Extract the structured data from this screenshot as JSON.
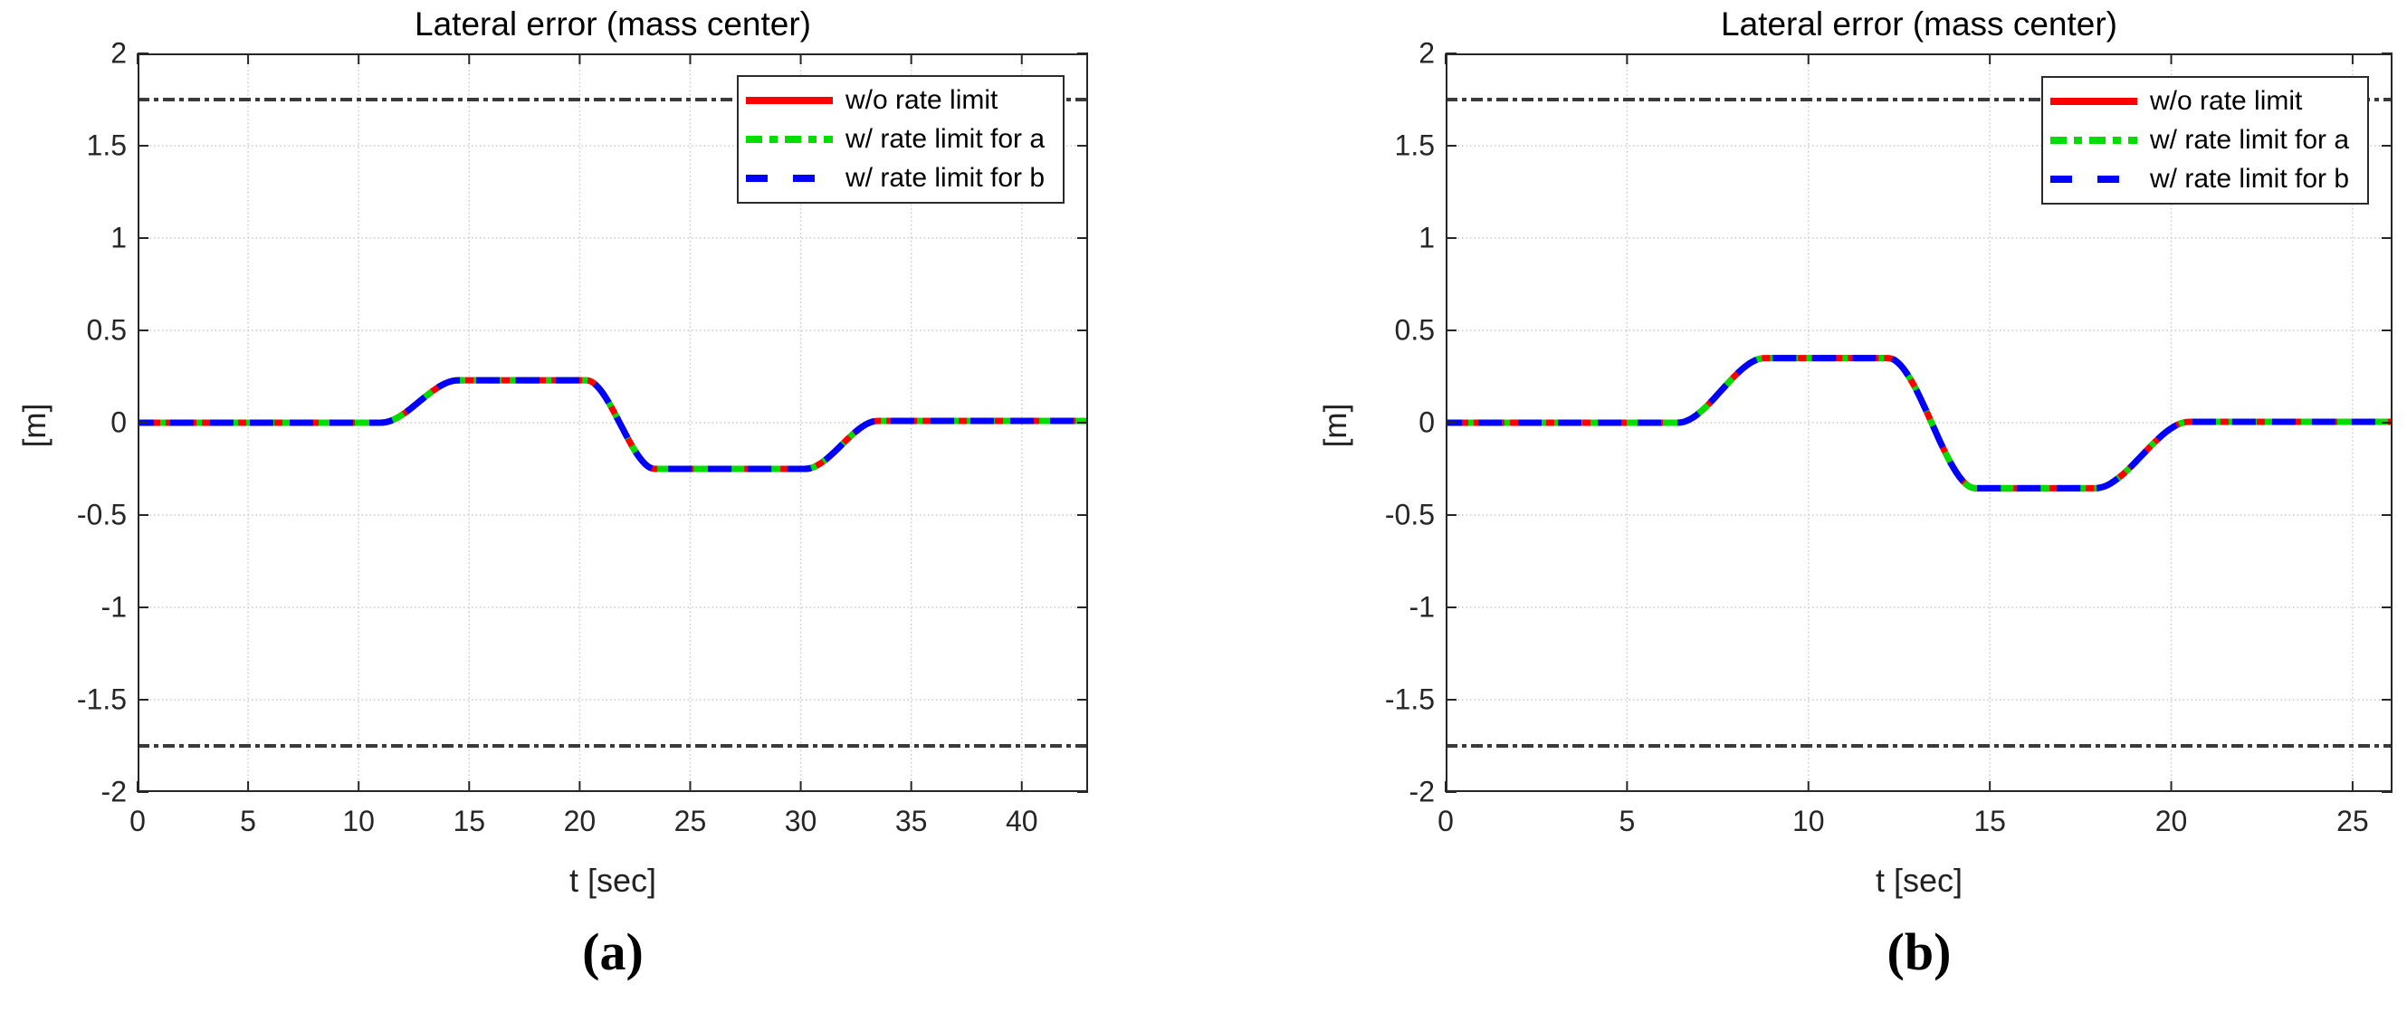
{
  "figure": {
    "background": "#ffffff",
    "axis_color": "#262626",
    "grid_color": "#c9c9c9",
    "bound_line_color": "#3a3a3a"
  },
  "legend": {
    "items": [
      {
        "label": "w/o rate limit",
        "color": "#ff0000",
        "dash": "",
        "icon": "solid-red-line"
      },
      {
        "label": "w/ rate limit for a",
        "color": "#00dd00",
        "dash": "18 8 9 8",
        "icon": "dashdot-green-line"
      },
      {
        "label": "w/ rate limit for b",
        "color": "#0000ff",
        "dash": "24 28",
        "icon": "dashed-blue-line"
      }
    ]
  },
  "chart_data": {
    "type": "line",
    "plots": [
      {
        "caption": "(a)",
        "title": "Lateral error (mass center)",
        "xlabel": "t [sec]",
        "ylabel": "[m]",
        "xlim": [
          0,
          43
        ],
        "ylim": [
          -2,
          2
        ],
        "xticks": [
          {
            "v": 0,
            "label": "0"
          },
          {
            "v": 5,
            "label": "5"
          },
          {
            "v": 10,
            "label": "10"
          },
          {
            "v": 15,
            "label": "15"
          },
          {
            "v": 20,
            "label": "20"
          },
          {
            "v": 25,
            "label": "25"
          },
          {
            "v": 30,
            "label": "30"
          },
          {
            "v": 35,
            "label": "35"
          },
          {
            "v": 40,
            "label": "40"
          }
        ],
        "yticks": [
          {
            "v": -2,
            "label": "-2"
          },
          {
            "v": -1.5,
            "label": "-1.5"
          },
          {
            "v": -1,
            "label": "-1"
          },
          {
            "v": -0.5,
            "label": "-0.5"
          },
          {
            "v": 0,
            "label": "0"
          },
          {
            "v": 0.5,
            "label": "0.5"
          },
          {
            "v": 1,
            "label": "1"
          },
          {
            "v": 1.5,
            "label": "1.5"
          },
          {
            "v": 2,
            "label": "2"
          }
        ],
        "bounds": [
          1.75,
          -1.75
        ],
        "grid": true,
        "legend_position": "top-right",
        "series_note": "three coincident curves: w/o rate limit, w/ rate limit for a, w/ rate limit for b",
        "curve_keypoints": [
          [
            0,
            0
          ],
          [
            11.0,
            0
          ],
          [
            14.5,
            0.23
          ],
          [
            20.3,
            0.23
          ],
          [
            23.4,
            -0.25
          ],
          [
            30.2,
            -0.25
          ],
          [
            33.5,
            0.01
          ],
          [
            43,
            0.01
          ]
        ]
      },
      {
        "caption": "(b)",
        "title": "Lateral error (mass center)",
        "xlabel": "t [sec]",
        "ylabel": "[m]",
        "xlim": [
          0,
          26.1
        ],
        "ylim": [
          -2,
          2
        ],
        "xticks": [
          {
            "v": 0,
            "label": "0"
          },
          {
            "v": 5,
            "label": "5"
          },
          {
            "v": 10,
            "label": "10"
          },
          {
            "v": 15,
            "label": "15"
          },
          {
            "v": 20,
            "label": "20"
          },
          {
            "v": 25,
            "label": "25"
          }
        ],
        "yticks": [
          {
            "v": -2,
            "label": "-2"
          },
          {
            "v": -1.5,
            "label": "-1.5"
          },
          {
            "v": -1,
            "label": "-1"
          },
          {
            "v": -0.5,
            "label": "-0.5"
          },
          {
            "v": 0,
            "label": "0"
          },
          {
            "v": 0.5,
            "label": "0.5"
          },
          {
            "v": 1,
            "label": "1"
          },
          {
            "v": 1.5,
            "label": "1.5"
          },
          {
            "v": 2,
            "label": "2"
          }
        ],
        "bounds": [
          1.75,
          -1.75
        ],
        "grid": true,
        "legend_position": "top-right",
        "series_note": "three coincident curves: w/o rate limit, w/ rate limit for a, w/ rate limit for b",
        "curve_keypoints": [
          [
            0,
            0
          ],
          [
            6.4,
            0
          ],
          [
            8.8,
            0.35
          ],
          [
            12.2,
            0.35
          ],
          [
            14.6,
            -0.355
          ],
          [
            17.9,
            -0.355
          ],
          [
            20.5,
            0.005
          ],
          [
            26.1,
            0.005
          ]
        ]
      }
    ],
    "curve_styles": [
      {
        "name": "w/o rate limit",
        "color": "#ff0000",
        "dash": "",
        "width": 7
      },
      {
        "name": "w/ rate limit for a",
        "color": "#00dd00",
        "dash": "16 9 6 9",
        "width": 7
      },
      {
        "name": "w/ rate limit for b",
        "color": "#0000ff",
        "dash": "26 18",
        "width": 7
      }
    ],
    "bound_style": {
      "color": "#3a3a3a",
      "dash": "13 5 5 5",
      "width": 4
    }
  }
}
